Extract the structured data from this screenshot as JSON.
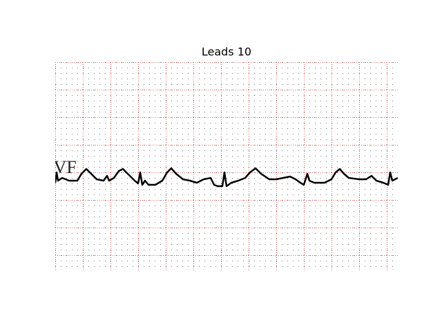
{
  "title": "Leads 10",
  "lead_label": "aVF"
}
